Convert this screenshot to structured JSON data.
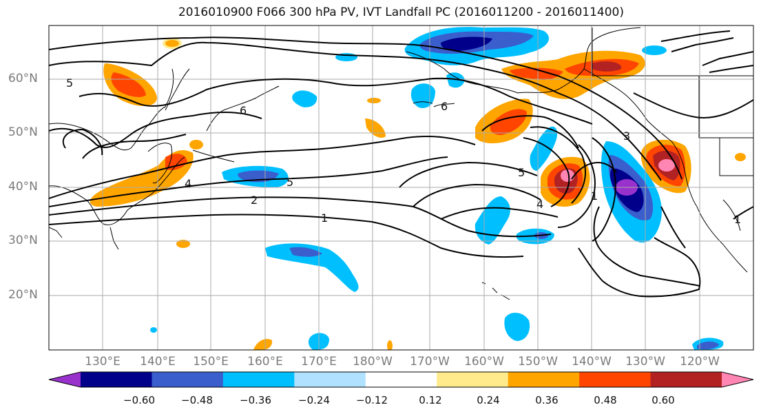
{
  "title": "2016010900 F066 300 hPa PV, IVT Landfall PC (2016011200 - 2016011400)",
  "lat_labels": [
    "60°N",
    "50°N",
    "40°N",
    "30°N",
    "20°N"
  ],
  "lon_labels": [
    "130°E",
    "140°E",
    "150°E",
    "160°E",
    "170°E",
    "180°W",
    "170°W",
    "160°W",
    "150°W",
    "140°W",
    "130°W",
    "120°W"
  ],
  "contour_labels": [
    "5",
    "6",
    "6",
    "4",
    "2",
    "1",
    "5",
    "5",
    "4",
    "3",
    "1",
    "1"
  ],
  "colorbar": {
    "tick_labels": [
      "−0.60",
      "−0.48",
      "−0.36",
      "−0.24",
      "−0.12",
      "0.12",
      "0.24",
      "0.36",
      "0.48",
      "0.60"
    ],
    "colors": [
      "#9932cc",
      "#00008b",
      "#3a5fcd",
      "#00bfff",
      "#b0e2ff",
      "#ffffff",
      "#ffeb8c",
      "#ffa500",
      "#ff4500",
      "#b22222",
      "#ff85b3"
    ]
  }
}
